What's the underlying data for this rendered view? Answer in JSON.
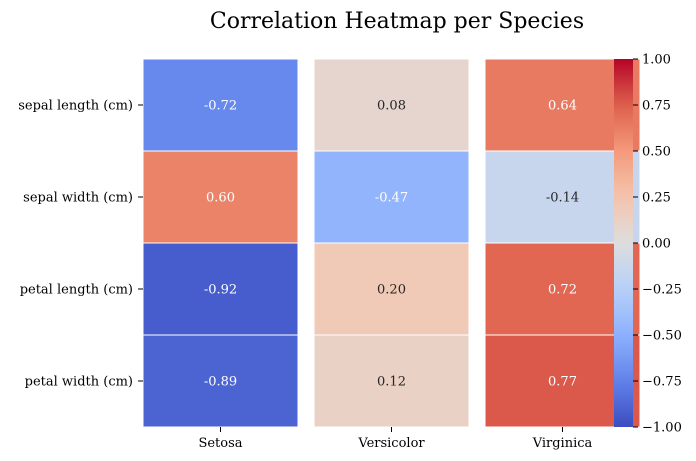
{
  "chart_data": {
    "type": "heatmap",
    "title": "Correlation Heatmap per Species",
    "rows": [
      "sepal length (cm)",
      "sepal width (cm)",
      "petal length (cm)",
      "petal width (cm)"
    ],
    "columns": [
      "Setosa",
      "Versicolor",
      "Virginica"
    ],
    "values": [
      [
        -0.72,
        0.08,
        0.64
      ],
      [
        0.6,
        -0.47,
        -0.14
      ],
      [
        -0.92,
        0.2,
        0.72
      ],
      [
        -0.89,
        0.12,
        0.77
      ]
    ],
    "value_labels": [
      [
        "-0.72",
        "0.08",
        "0.64"
      ],
      [
        "0.60",
        "-0.47",
        "-0.14"
      ],
      [
        "-0.92",
        "0.20",
        "0.72"
      ],
      [
        "-0.89",
        "0.12",
        "0.77"
      ]
    ],
    "colormap": "coolwarm",
    "vmin": -1.0,
    "vmax": 1.0,
    "colorbar_ticks": [
      "1.00",
      "0.75",
      "0.50",
      "0.25",
      "0.00",
      "−0.25",
      "−0.50",
      "−0.75",
      "−1.00"
    ],
    "colorbar_tick_values": [
      1.0,
      0.75,
      0.5,
      0.25,
      0.0,
      -0.25,
      -0.5,
      -0.75,
      -1.0
    ]
  }
}
